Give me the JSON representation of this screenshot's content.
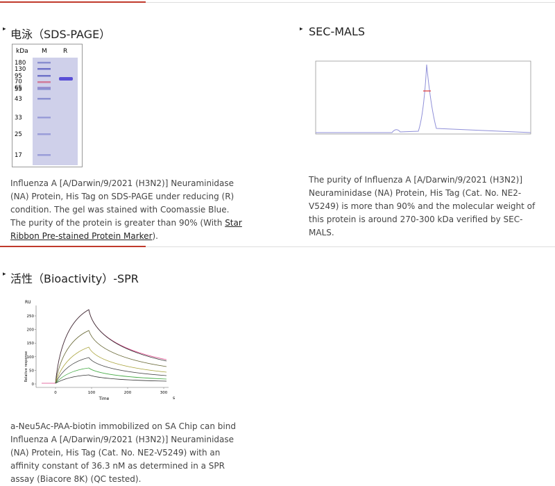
{
  "sections": [
    {
      "title": "电泳（SDS-PAGE）",
      "gel": {
        "unit": "kDa",
        "lanes": [
          "M",
          "R"
        ],
        "markers": [
          "180",
          "130",
          "95",
          "70",
          "65",
          "55",
          "43",
          "33",
          "25",
          "17"
        ]
      },
      "caption": {
        "before": "Influenza A [A/Darwin/9/2021 (H3N2)] Neuraminidase (NA) Protein, His Tag on SDS-PAGE under reducing (R) condition. The gel was stained with Coomassie Blue. The purity of the protein is greater than 90% (With ",
        "link": "Star Ribbon Pre-stained Protein Marker",
        "after": ")."
      }
    },
    {
      "title": "SEC-MALS",
      "caption": "The purity of Influenza A [A/Darwin/9/2021 (H3N2)] Neuraminidase (NA) Protein, His Tag (Cat. No. NE2-V5249) is more than 90% and the molecular weight of this protein is around 270-300 kDa verified by SEC-MALS."
    },
    {
      "title": "活性（Bioactivity）-SPR",
      "spr": {
        "y_unit": "RU",
        "y_label": "Relative response",
        "x_label": "Time",
        "x_unit": "s",
        "yticks": [
          "250",
          "200",
          "150",
          "100",
          "50",
          "0"
        ],
        "xticks": [
          "0",
          "100",
          "200",
          "300"
        ]
      },
      "caption": "a-Neu5Ac-PAA-biotin immobilized on SA Chip can bind Influenza A [A/Darwin/9/2021 (H3N2)] Neuraminidase (NA) Protein, His Tag (Cat. No. NE2-V5249) with an affinity constant of 36.3 nM as determined in a SPR assay (Biacore 8K) (QC tested)."
    }
  ]
}
